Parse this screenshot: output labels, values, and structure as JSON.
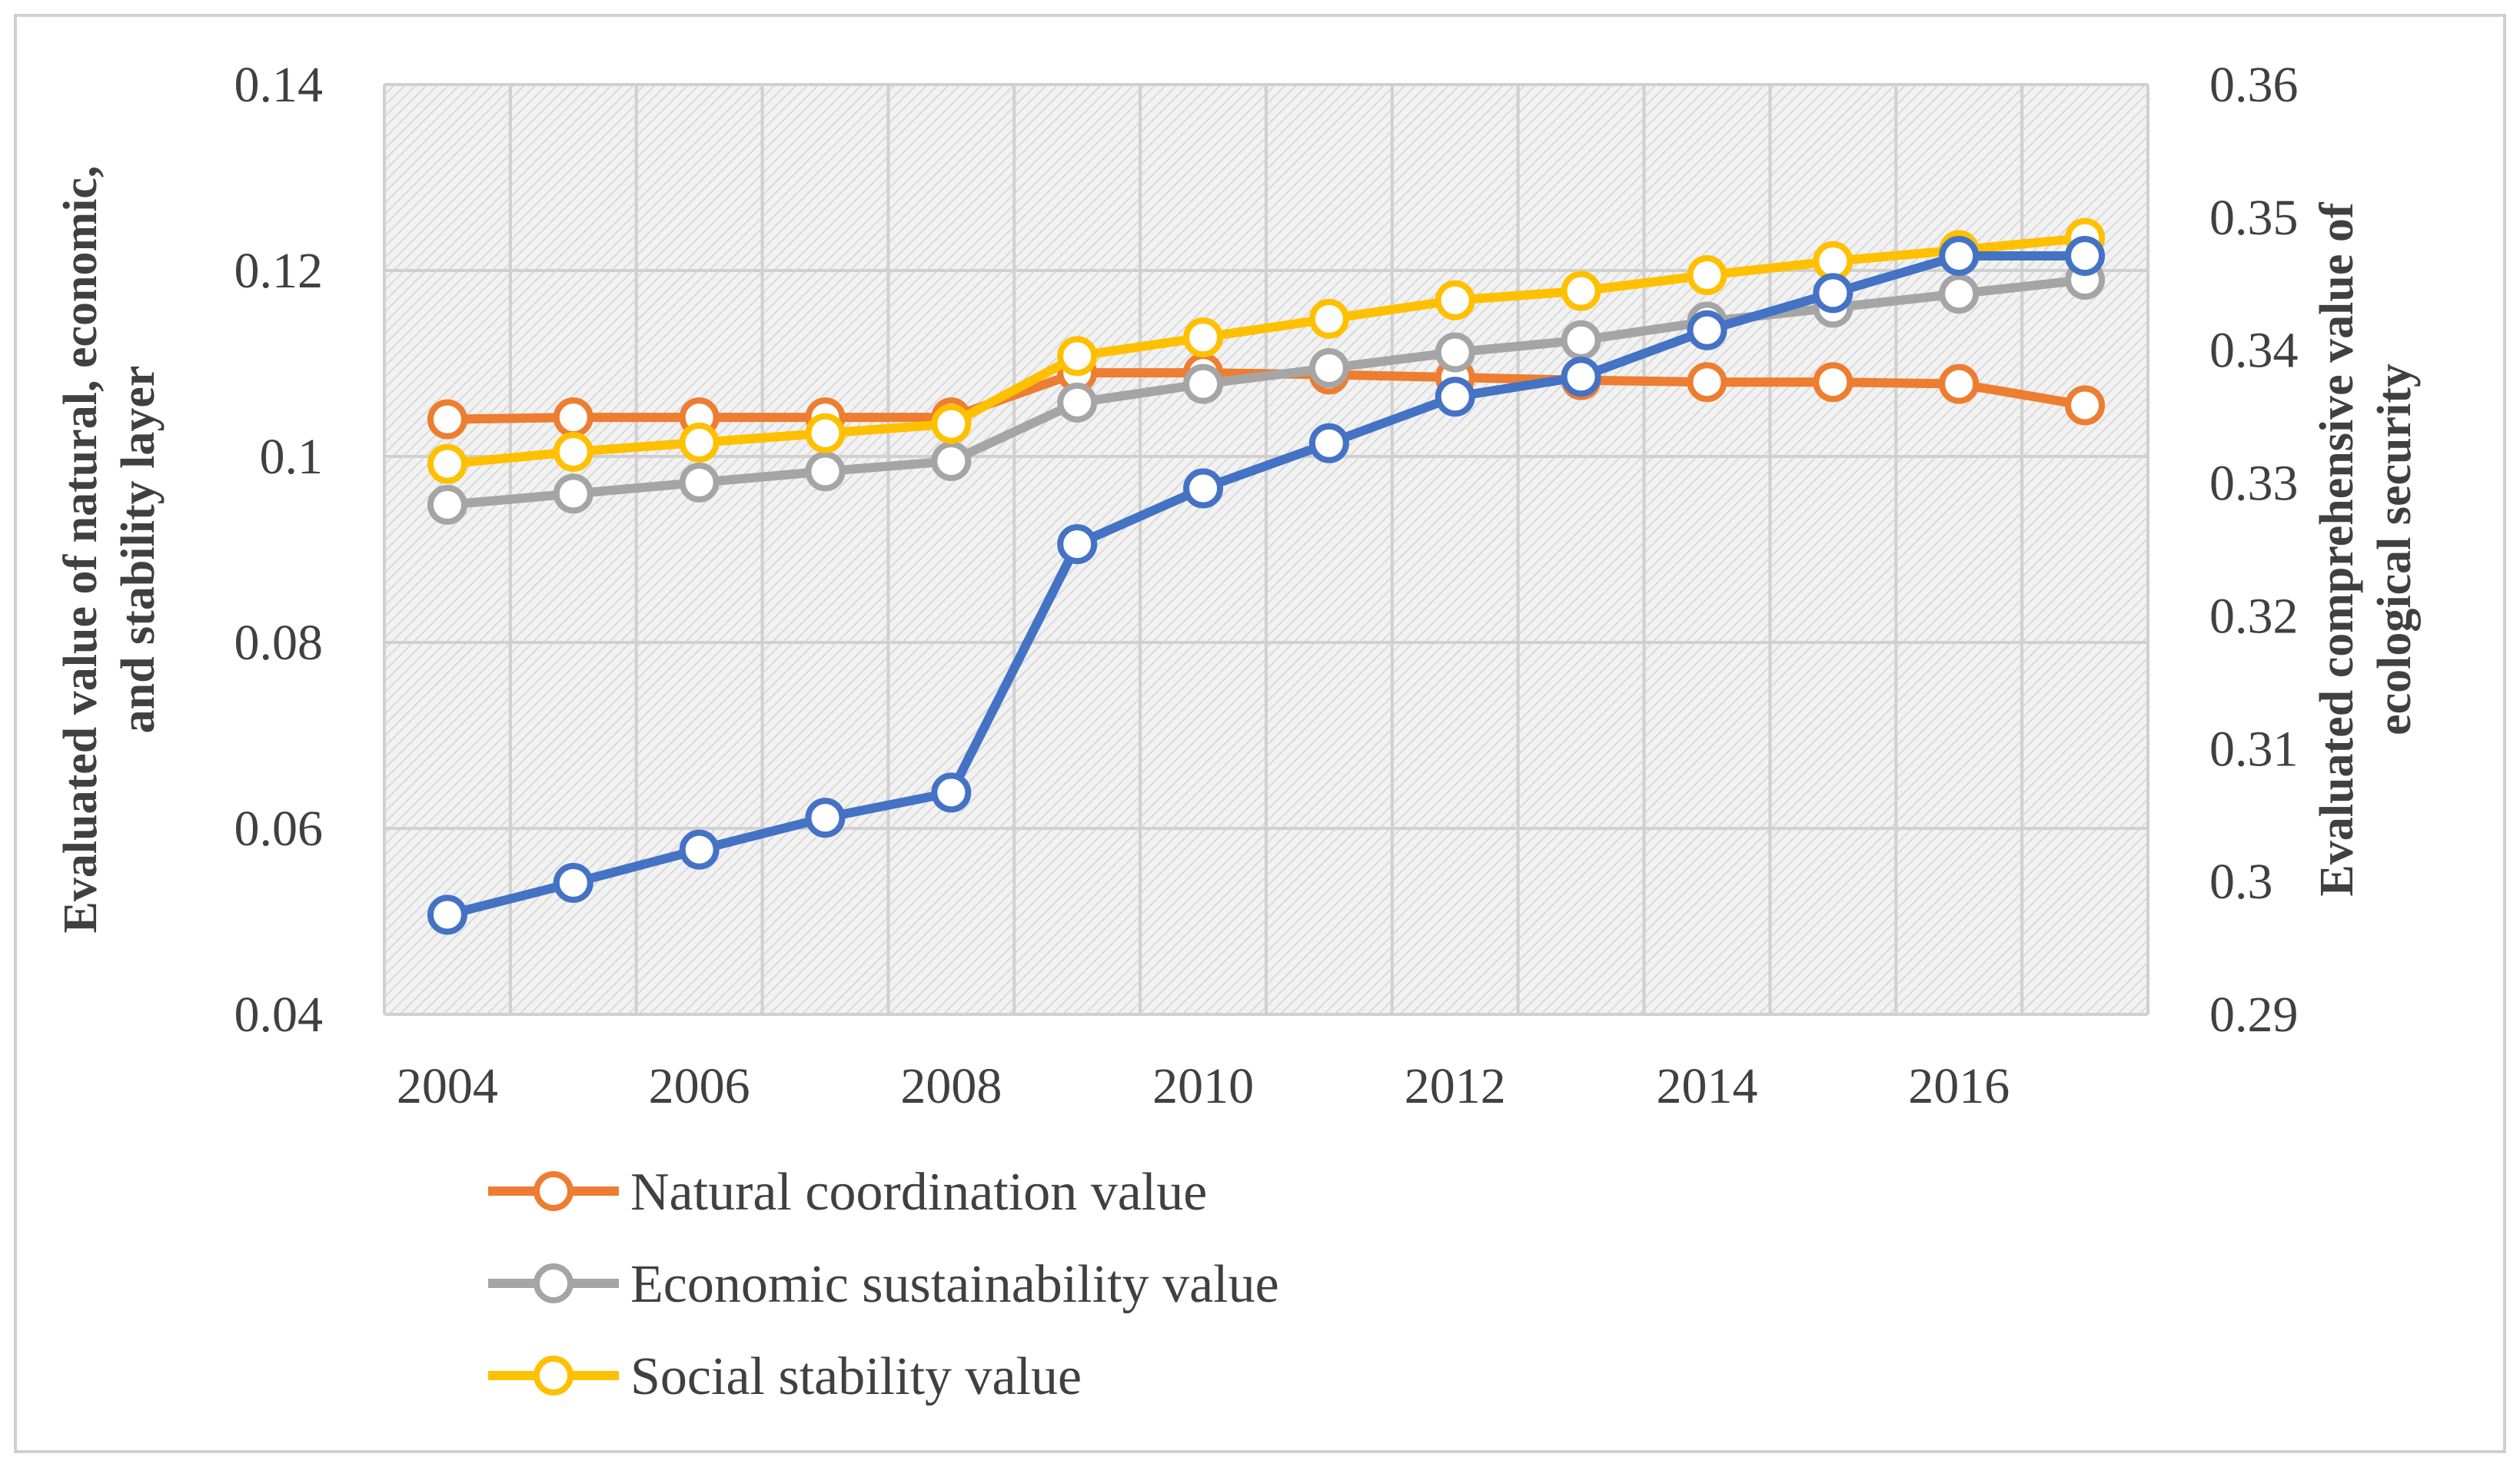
{
  "chart_data": {
    "type": "line",
    "title": "",
    "x": [
      2004,
      2005,
      2006,
      2007,
      2008,
      2009,
      2010,
      2011,
      2012,
      2013,
      2014,
      2015,
      2016,
      2017
    ],
    "x_tick_labels": [
      "2004",
      "2006",
      "2008",
      "2010",
      "2012",
      "2014",
      "2016"
    ],
    "ylabel_left_lines": [
      "Evaluated value of natural, economic,",
      "and stability layer"
    ],
    "ylabel_right_lines": [
      "Evaluated comprehensive value of",
      "ecological security"
    ],
    "y_left": {
      "min": 0.04,
      "max": 0.14,
      "ticks": [
        0.04,
        0.06,
        0.08,
        0.1,
        0.12,
        0.14
      ],
      "tick_labels": [
        "0.04",
        "0.06",
        "0.08",
        "0.1",
        "0.12",
        "0.14"
      ]
    },
    "y_right": {
      "min": 0.29,
      "max": 0.36,
      "ticks": [
        0.29,
        0.3,
        0.31,
        0.32,
        0.33,
        0.34,
        0.35,
        0.36
      ],
      "tick_labels": [
        "0.29",
        "0.3",
        "0.31",
        "0.32",
        "0.33",
        "0.34",
        "0.35",
        "0.36"
      ]
    },
    "grid": true,
    "legend_position": "bottom-left",
    "series": [
      {
        "name": "Natural coordination value",
        "legend_label": " Natural coordination value",
        "axis": "left",
        "color": "#ED7D31",
        "values": [
          0.104,
          0.1042,
          0.1042,
          0.1042,
          0.1042,
          0.109,
          0.109,
          0.1088,
          0.1085,
          0.1082,
          0.108,
          0.108,
          0.1078,
          0.1055
        ]
      },
      {
        "name": "Economic sustainability value",
        "legend_label": "Economic sustainability value",
        "axis": "left",
        "color": "#A5A5A5",
        "values": [
          0.0948,
          0.096,
          0.0972,
          0.0984,
          0.0995,
          0.1058,
          0.1078,
          0.1095,
          0.1112,
          0.1125,
          0.1145,
          0.116,
          0.1175,
          0.119
        ]
      },
      {
        "name": "Social stability value",
        "legend_label": "Social stability value",
        "axis": "left",
        "color": "#FFC000",
        "values": [
          0.0992,
          0.1005,
          0.1015,
          0.1025,
          0.1035,
          0.1108,
          0.1128,
          0.1148,
          0.1168,
          0.1178,
          0.1195,
          0.121,
          0.1222,
          0.1235
        ]
      },
      {
        "name": "Comprehensive value of ecological security",
        "legend_label": "",
        "axis": "right",
        "color": "#4472C4",
        "values": [
          0.2975,
          0.2999,
          0.3024,
          0.3048,
          0.3067,
          0.3254,
          0.3296,
          0.333,
          0.3365,
          0.338,
          0.3415,
          0.3443,
          0.3471,
          0.3471
        ]
      }
    ]
  }
}
